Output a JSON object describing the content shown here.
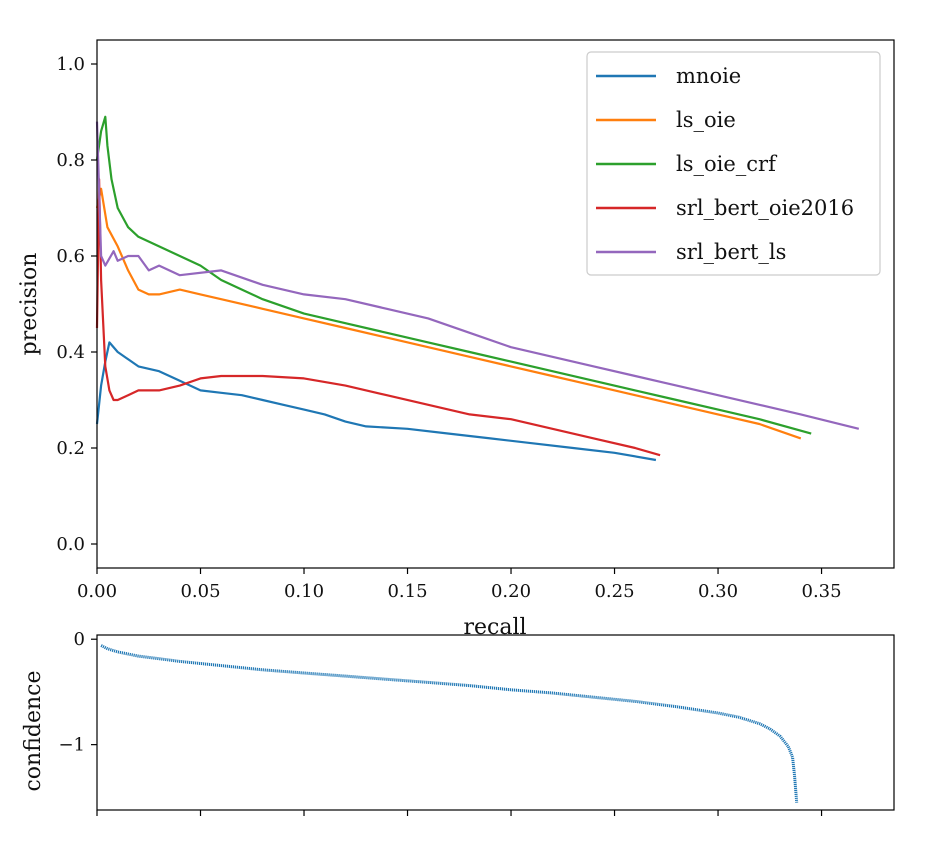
{
  "colors": {
    "blue": "#1f77b4",
    "orange": "#ff7f0e",
    "green": "#2ca02c",
    "red": "#d62728",
    "purple": "#9467bd"
  },
  "chart_data": [
    {
      "type": "line",
      "title": "",
      "xlabel": "recall",
      "ylabel": "precision",
      "xlim": [
        0,
        0.385
      ],
      "ylim": [
        -0.05,
        1.05
      ],
      "xticks": [
        0.0,
        0.05,
        0.1,
        0.15,
        0.2,
        0.25,
        0.3,
        0.35
      ],
      "xtick_labels": [
        "0.00",
        "0.05",
        "0.10",
        "0.15",
        "0.20",
        "0.25",
        "0.30",
        "0.35"
      ],
      "yticks": [
        0.0,
        0.2,
        0.4,
        0.6,
        0.8,
        1.0
      ],
      "ytick_labels": [
        "0.0",
        "0.2",
        "0.4",
        "0.6",
        "0.8",
        "1.0"
      ],
      "grid": false,
      "legend_position": "top-right",
      "series": [
        {
          "name": "mnoie",
          "color": "#1f77b4",
          "x": [
            0.0,
            0.002,
            0.004,
            0.006,
            0.01,
            0.02,
            0.03,
            0.04,
            0.05,
            0.06,
            0.07,
            0.08,
            0.09,
            0.1,
            0.11,
            0.12,
            0.13,
            0.15,
            0.17,
            0.19,
            0.21,
            0.23,
            0.25,
            0.27
          ],
          "y": [
            0.25,
            0.33,
            0.38,
            0.42,
            0.4,
            0.37,
            0.36,
            0.34,
            0.32,
            0.315,
            0.31,
            0.3,
            0.29,
            0.28,
            0.27,
            0.255,
            0.245,
            0.24,
            0.23,
            0.22,
            0.21,
            0.2,
            0.19,
            0.175
          ]
        },
        {
          "name": "ls_oie",
          "color": "#ff7f0e",
          "x": [
            0.0,
            0.002,
            0.005,
            0.01,
            0.015,
            0.02,
            0.025,
            0.03,
            0.04,
            0.05,
            0.06,
            0.08,
            0.1,
            0.12,
            0.14,
            0.16,
            0.18,
            0.2,
            0.22,
            0.24,
            0.26,
            0.28,
            0.3,
            0.32,
            0.34
          ],
          "y": [
            0.7,
            0.74,
            0.66,
            0.62,
            0.57,
            0.53,
            0.52,
            0.52,
            0.53,
            0.52,
            0.51,
            0.49,
            0.47,
            0.45,
            0.43,
            0.41,
            0.39,
            0.37,
            0.35,
            0.33,
            0.31,
            0.29,
            0.27,
            0.25,
            0.22
          ]
        },
        {
          "name": "ls_oie_crf",
          "color": "#2ca02c",
          "x": [
            0.0,
            0.002,
            0.004,
            0.005,
            0.007,
            0.01,
            0.015,
            0.02,
            0.03,
            0.04,
            0.05,
            0.06,
            0.07,
            0.08,
            0.1,
            0.12,
            0.14,
            0.16,
            0.18,
            0.2,
            0.22,
            0.24,
            0.26,
            0.28,
            0.3,
            0.32,
            0.345
          ],
          "y": [
            0.8,
            0.86,
            0.89,
            0.83,
            0.76,
            0.7,
            0.66,
            0.64,
            0.62,
            0.6,
            0.58,
            0.55,
            0.53,
            0.51,
            0.48,
            0.46,
            0.44,
            0.42,
            0.4,
            0.38,
            0.36,
            0.34,
            0.32,
            0.3,
            0.28,
            0.26,
            0.23
          ]
        },
        {
          "name": "srl_bert_oie2016",
          "color": "#d62728",
          "x": [
            0.0,
            0.001,
            0.002,
            0.004,
            0.006,
            0.008,
            0.01,
            0.015,
            0.02,
            0.03,
            0.04,
            0.05,
            0.06,
            0.08,
            0.1,
            0.12,
            0.14,
            0.16,
            0.18,
            0.2,
            0.22,
            0.24,
            0.26,
            0.272
          ],
          "y": [
            0.45,
            0.76,
            0.55,
            0.37,
            0.32,
            0.3,
            0.3,
            0.31,
            0.32,
            0.32,
            0.33,
            0.345,
            0.35,
            0.35,
            0.345,
            0.33,
            0.31,
            0.29,
            0.27,
            0.26,
            0.24,
            0.22,
            0.2,
            0.185
          ]
        },
        {
          "name": "srl_bert_ls",
          "color": "#9467bd",
          "x": [
            0.0,
            0.002,
            0.004,
            0.008,
            0.01,
            0.015,
            0.02,
            0.025,
            0.03,
            0.04,
            0.06,
            0.08,
            0.1,
            0.12,
            0.14,
            0.16,
            0.18,
            0.2,
            0.22,
            0.24,
            0.26,
            0.28,
            0.3,
            0.32,
            0.34,
            0.368
          ],
          "y": [
            0.88,
            0.6,
            0.58,
            0.61,
            0.59,
            0.6,
            0.6,
            0.57,
            0.58,
            0.56,
            0.57,
            0.54,
            0.52,
            0.51,
            0.49,
            0.47,
            0.44,
            0.41,
            0.39,
            0.37,
            0.35,
            0.33,
            0.31,
            0.29,
            0.27,
            0.24
          ]
        }
      ]
    },
    {
      "type": "line",
      "title": "",
      "xlabel": "",
      "ylabel": "confidence",
      "xlim": [
        0,
        0.385
      ],
      "ylim": [
        -1.62,
        0.04
      ],
      "yticks": [
        0,
        -1
      ],
      "ytick_labels": [
        "0",
        "−1"
      ],
      "xticks": [
        0.0,
        0.05,
        0.1,
        0.15,
        0.2,
        0.25,
        0.3,
        0.35
      ],
      "grid": false,
      "series": [
        {
          "color": "#1f77b4",
          "x": [
            0.002,
            0.005,
            0.01,
            0.02,
            0.04,
            0.06,
            0.08,
            0.1,
            0.12,
            0.14,
            0.16,
            0.18,
            0.2,
            0.22,
            0.24,
            0.26,
            0.28,
            0.3,
            0.31,
            0.32,
            0.325,
            0.33,
            0.334,
            0.336,
            0.337,
            0.338
          ],
          "y": [
            -0.06,
            -0.09,
            -0.12,
            -0.16,
            -0.21,
            -0.25,
            -0.29,
            -0.32,
            -0.35,
            -0.38,
            -0.41,
            -0.44,
            -0.48,
            -0.51,
            -0.55,
            -0.59,
            -0.64,
            -0.7,
            -0.74,
            -0.8,
            -0.85,
            -0.92,
            -1.02,
            -1.12,
            -1.3,
            -1.55
          ]
        }
      ]
    }
  ]
}
